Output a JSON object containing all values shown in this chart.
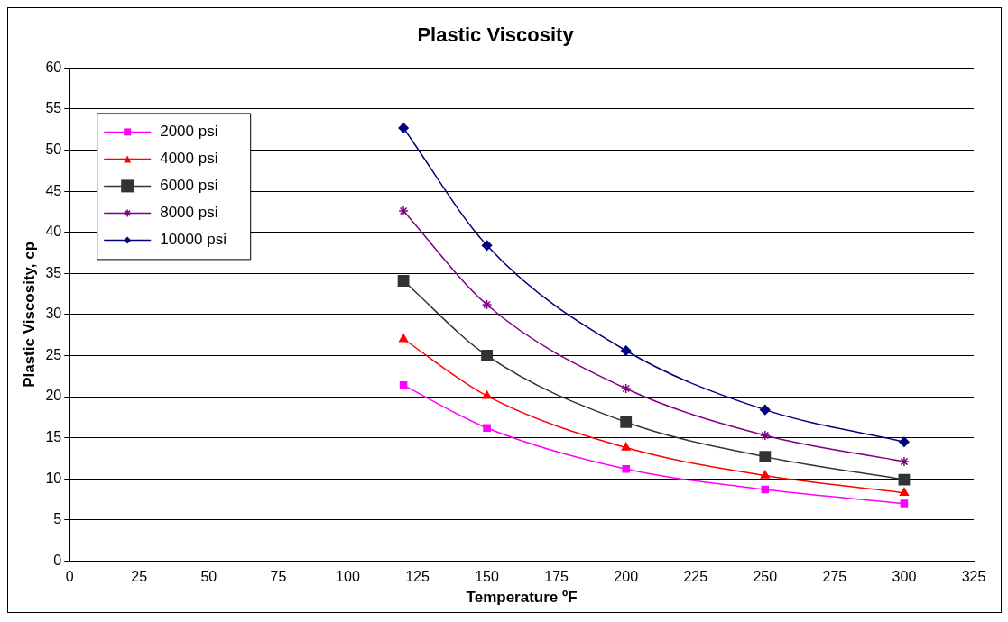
{
  "chart_data": {
    "type": "line",
    "title": "Plastic Viscosity",
    "xlabel": "Temperature ºF",
    "ylabel": "Plastic Viscosity, cp",
    "xlim": [
      0,
      325
    ],
    "xticks": [
      0,
      25,
      50,
      75,
      100,
      125,
      150,
      175,
      200,
      225,
      250,
      275,
      300,
      325
    ],
    "ylim": [
      0,
      60
    ],
    "yticks": [
      0,
      5,
      10,
      15,
      20,
      25,
      30,
      35,
      40,
      45,
      50,
      55,
      60
    ],
    "grid": "y",
    "legend": "top left",
    "x": [
      120,
      150,
      200,
      250,
      300
    ],
    "series": [
      {
        "name": "2000 psi",
        "color": "#ff00ff",
        "marker": "square",
        "values": [
          21.4,
          16.2,
          11.2,
          8.7,
          7.0
        ]
      },
      {
        "name": "4000 psi",
        "color": "#ff0000",
        "marker": "triangle",
        "values": [
          27.0,
          20.1,
          13.8,
          10.4,
          8.3
        ]
      },
      {
        "name": "6000 psi",
        "color": "#333333",
        "marker": "square",
        "values": [
          34.1,
          25.0,
          16.9,
          12.7,
          9.9
        ]
      },
      {
        "name": "8000 psi",
        "color": "#800080",
        "marker": "cross",
        "values": [
          42.6,
          31.2,
          21.0,
          15.3,
          12.1
        ]
      },
      {
        "name": "10000 psi",
        "color": "#000080",
        "marker": "diamond",
        "values": [
          52.7,
          38.4,
          25.6,
          18.4,
          14.5
        ]
      }
    ]
  }
}
